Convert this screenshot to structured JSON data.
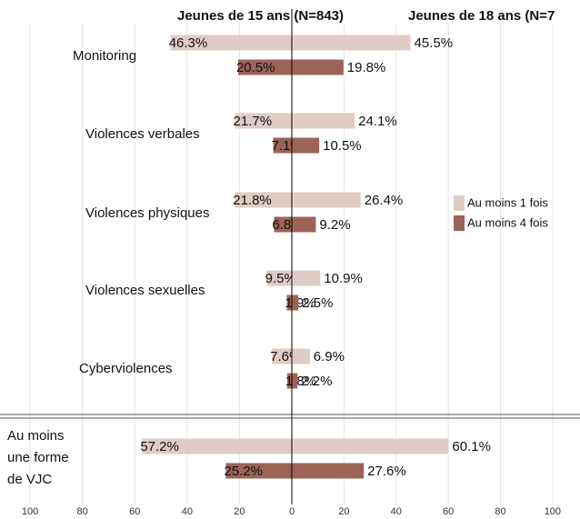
{
  "chart_data": {
    "type": "bar",
    "orientation": "horizontal",
    "categories": [
      "Monitoring",
      "Violences verbales",
      "Violences physiques",
      "Violences sexuelles",
      "Cyberviolences",
      "Au moins\nune forme\nde VJC"
    ],
    "series": [
      {
        "name": "Au moins 1 fois",
        "color": "#e0cbc5"
      },
      {
        "name": "Au moins 4 fois",
        "color": "#9b6457"
      }
    ],
    "panels": [
      {
        "title": "Jeunes de 15 ans (N=843)",
        "xlim": [
          111.5,
          0
        ],
        "xticks": [
          100,
          80,
          60,
          40,
          20
        ],
        "values": [
          [
            46.3,
            21.7,
            21.8,
            9.5,
            7.6,
            57.2
          ],
          [
            20.5,
            7.1,
            6.8,
            1.9,
            1.8,
            25.2
          ]
        ],
        "value_labels": [
          [
            "46.3%",
            "21.7%",
            "21.8%",
            "9.5%",
            "7.6%",
            "57.2%"
          ],
          [
            "20.5%",
            "7.1%",
            "6.8%",
            "1.9%",
            "1.8%",
            "25.2%"
          ]
        ]
      },
      {
        "title": "Jeunes de 18 ans (N=7",
        "xlim": [
          0,
          110.5
        ],
        "xticks": [
          0,
          20,
          40,
          60,
          80,
          100
        ],
        "values": [
          [
            45.5,
            24.1,
            26.4,
            10.9,
            6.9,
            60.1
          ],
          [
            19.8,
            10.5,
            9.2,
            2.5,
            2.2,
            27.6
          ]
        ],
        "value_labels": [
          [
            "45.5%",
            "24.1%",
            "26.4%",
            "10.9%",
            "6.9%",
            "60.1%"
          ],
          [
            "19.8%",
            "10.5%",
            "9.2%",
            "2.5%",
            "2.2%",
            "27.6%"
          ]
        ]
      }
    ],
    "grid": true,
    "legend": "right"
  }
}
